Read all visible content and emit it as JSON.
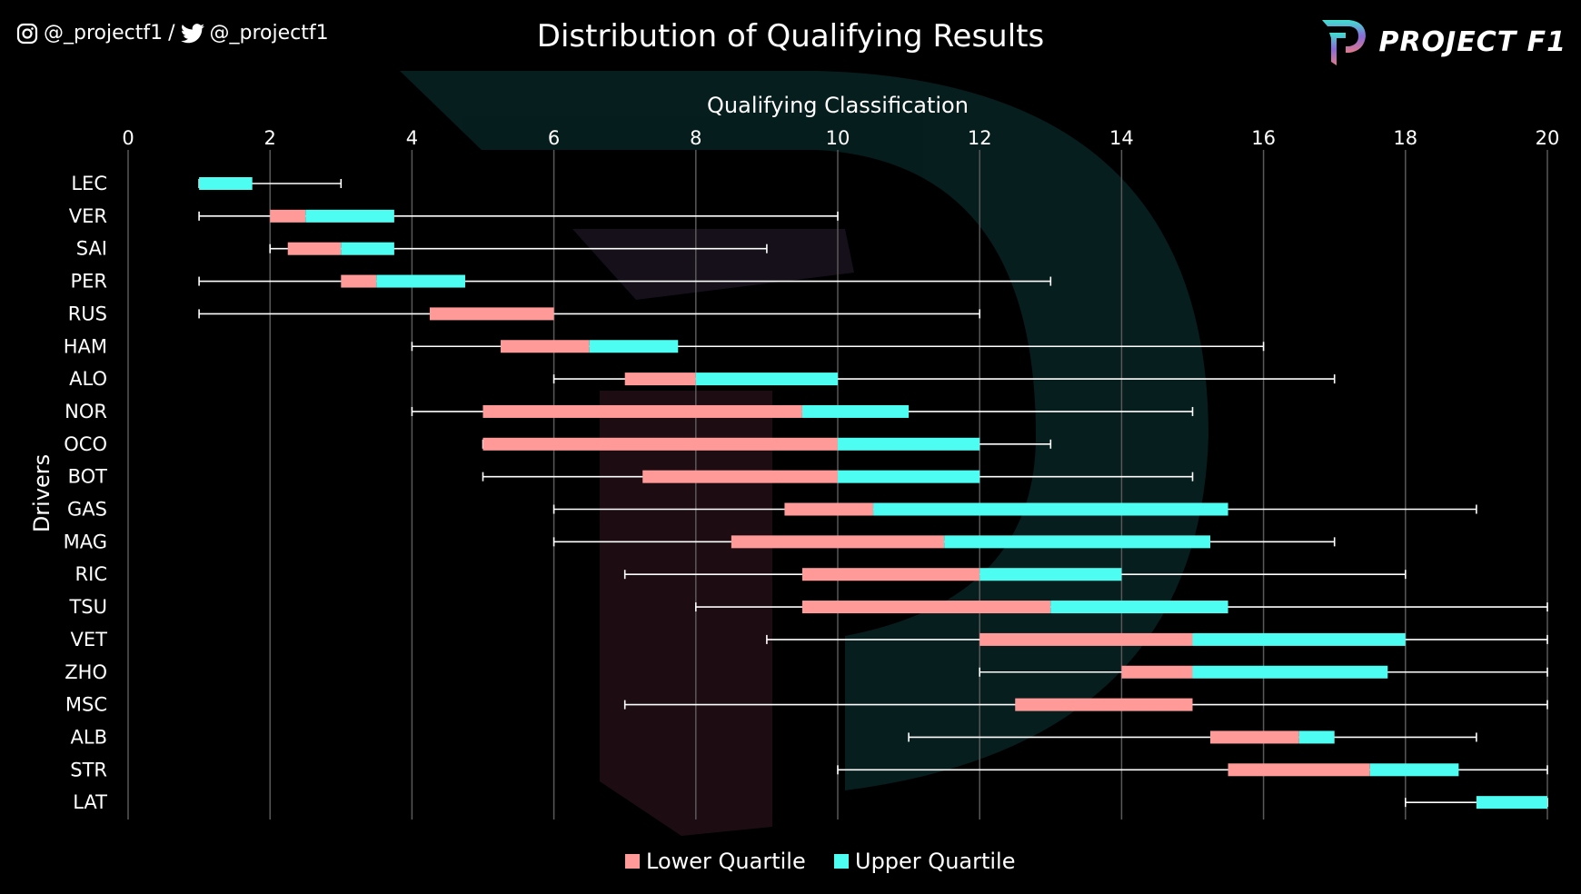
{
  "header": {
    "instagram_handle": "@_projectf1",
    "separator": "/",
    "twitter_handle": "@_projectf1",
    "brand": "PROJECT F1",
    "icons": [
      "instagram-icon",
      "twitter-icon",
      "project-f1-logo"
    ]
  },
  "chart_data": {
    "type": "box",
    "title": "Distribution of Qualifying Results",
    "xlabel": "Qualifying Classification",
    "ylabel": "Drivers",
    "xlim": [
      0,
      20
    ],
    "xticks": [
      "0",
      "2",
      "4",
      "6",
      "8",
      "10",
      "12",
      "14",
      "16",
      "18",
      "20"
    ],
    "grid": "vertical",
    "legend": {
      "placement": "bottom",
      "entries": [
        "Lower Quartile",
        "Upper Quartile"
      ]
    },
    "colors": {
      "lower": "#ff9a98",
      "upper": "#4dfdf2",
      "whisker": "#ffffff",
      "grid": "#595959"
    },
    "drivers": [
      {
        "name": "LEC",
        "min": 1,
        "q1": 1,
        "median": 1,
        "q3": 1.75,
        "max": 3
      },
      {
        "name": "VER",
        "min": 1,
        "q1": 2,
        "median": 2.5,
        "q3": 3.75,
        "max": 10
      },
      {
        "name": "SAI",
        "min": 2,
        "q1": 2.25,
        "median": 3,
        "q3": 3.75,
        "max": 9
      },
      {
        "name": "PER",
        "min": 1,
        "q1": 3,
        "median": 3.5,
        "q3": 4.75,
        "max": 13
      },
      {
        "name": "RUS",
        "min": 1,
        "q1": 4.25,
        "median": 6,
        "q3": 6,
        "max": 12
      },
      {
        "name": "HAM",
        "min": 4,
        "q1": 5.25,
        "median": 6.5,
        "q3": 7.75,
        "max": 16
      },
      {
        "name": "ALO",
        "min": 6,
        "q1": 7,
        "median": 8,
        "q3": 10,
        "max": 17
      },
      {
        "name": "NOR",
        "min": 4,
        "q1": 5,
        "median": 9.5,
        "q3": 11,
        "max": 15
      },
      {
        "name": "OCO",
        "min": 5,
        "q1": 5,
        "median": 10,
        "q3": 12,
        "max": 13
      },
      {
        "name": "BOT",
        "min": 5,
        "q1": 7.25,
        "median": 10,
        "q3": 12,
        "max": 15
      },
      {
        "name": "GAS",
        "min": 6,
        "q1": 9.25,
        "median": 10.5,
        "q3": 15.5,
        "max": 19
      },
      {
        "name": "MAG",
        "min": 6,
        "q1": 8.5,
        "median": 11.5,
        "q3": 15.25,
        "max": 17
      },
      {
        "name": "RIC",
        "min": 7,
        "q1": 9.5,
        "median": 12,
        "q3": 14,
        "max": 18
      },
      {
        "name": "TSU",
        "min": 8,
        "q1": 9.5,
        "median": 13,
        "q3": 15.5,
        "max": 20
      },
      {
        "name": "VET",
        "min": 9,
        "q1": 12,
        "median": 15,
        "q3": 18,
        "max": 20
      },
      {
        "name": "ZHO",
        "min": 12,
        "q1": 14,
        "median": 15,
        "q3": 17.75,
        "max": 20
      },
      {
        "name": "MSC",
        "min": 7,
        "q1": 12.5,
        "median": 15,
        "q3": 15,
        "max": 20
      },
      {
        "name": "ALB",
        "min": 11,
        "q1": 15.25,
        "median": 16.5,
        "q3": 17,
        "max": 19
      },
      {
        "name": "STR",
        "min": 10,
        "q1": 15.5,
        "median": 17.5,
        "q3": 18.75,
        "max": 20
      },
      {
        "name": "LAT",
        "min": 18,
        "q1": 19,
        "median": 19,
        "q3": 20,
        "max": 20
      }
    ]
  }
}
